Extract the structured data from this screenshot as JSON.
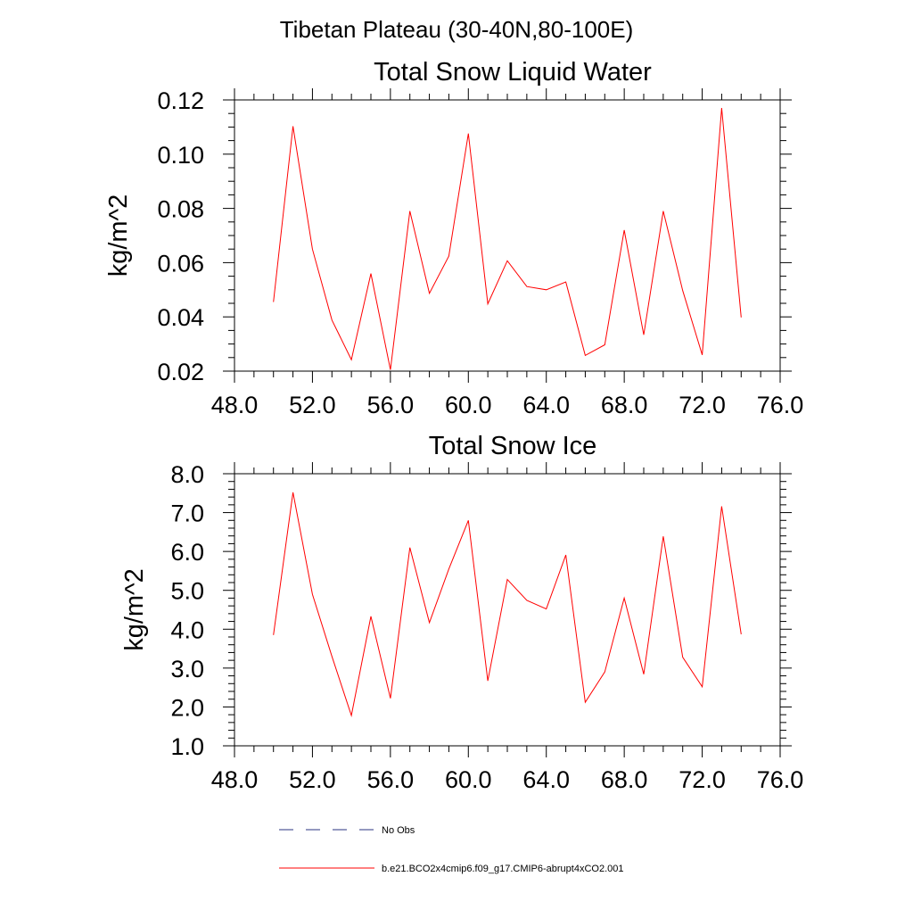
{
  "figure_title": "Tibetan Plateau (30-40N,80-100E)",
  "colors": {
    "series": "#ff0000",
    "no_obs": "#2a3380",
    "axes": "#000000",
    "background": "#ffffff"
  },
  "legend": [
    {
      "label": "No Obs",
      "style": "dashed"
    },
    {
      "label": "b.e21.BCO2x4cmip6.f09_g17.CMIP6-abrupt4xCO2.001",
      "style": "solid"
    }
  ],
  "chart_data": [
    {
      "type": "line",
      "title": "Total Snow Liquid Water",
      "xlabel": "",
      "ylabel": "kg/m^2",
      "xlim": [
        48,
        76
      ],
      "ylim": [
        0.02,
        0.12
      ],
      "grid": false,
      "x_ticks": [
        "48.0",
        "52.0",
        "56.0",
        "60.0",
        "64.0",
        "68.0",
        "72.0",
        "76.0"
      ],
      "y_ticks": [
        "0.02",
        "0.04",
        "0.06",
        "0.08",
        "0.10",
        "0.12"
      ],
      "series": [
        {
          "name": "b.e21.BCO2x4cmip6.f09_g17.CMIP6-abrupt4xCO2.001",
          "x": [
            50,
            51,
            52,
            53,
            54,
            55,
            56,
            57,
            58,
            59,
            60,
            61,
            62,
            63,
            64,
            65,
            66,
            67,
            68,
            69,
            70,
            71,
            72,
            73,
            74
          ],
          "y": [
            0.0455,
            0.1103,
            0.065,
            0.0388,
            0.0242,
            0.056,
            0.0205,
            0.079,
            0.0487,
            0.0624,
            0.1076,
            0.0448,
            0.0607,
            0.0512,
            0.05,
            0.0529,
            0.0258,
            0.0297,
            0.072,
            0.0334,
            0.079,
            0.0497,
            0.026,
            0.117,
            0.0398
          ]
        }
      ]
    },
    {
      "type": "line",
      "title": "Total Snow Ice",
      "xlabel": "",
      "ylabel": "kg/m^2",
      "xlim": [
        48,
        76
      ],
      "ylim": [
        1.0,
        8.0
      ],
      "grid": false,
      "x_ticks": [
        "48.0",
        "52.0",
        "56.0",
        "60.0",
        "64.0",
        "68.0",
        "72.0",
        "76.0"
      ],
      "y_ticks": [
        "1.0",
        "2.0",
        "3.0",
        "4.0",
        "5.0",
        "6.0",
        "7.0",
        "8.0"
      ],
      "series": [
        {
          "name": "b.e21.BCO2x4cmip6.f09_g17.CMIP6-abrupt4xCO2.001",
          "x": [
            50,
            51,
            52,
            53,
            54,
            55,
            56,
            57,
            58,
            59,
            60,
            61,
            62,
            63,
            64,
            65,
            66,
            67,
            68,
            69,
            70,
            71,
            72,
            73,
            74
          ],
          "y": [
            3.85,
            7.52,
            4.9,
            3.3,
            1.78,
            4.33,
            2.22,
            6.1,
            4.17,
            5.55,
            6.8,
            2.67,
            5.28,
            4.74,
            4.52,
            5.91,
            2.12,
            2.9,
            4.8,
            2.84,
            6.39,
            3.28,
            2.52,
            7.16,
            3.87
          ]
        }
      ]
    }
  ]
}
